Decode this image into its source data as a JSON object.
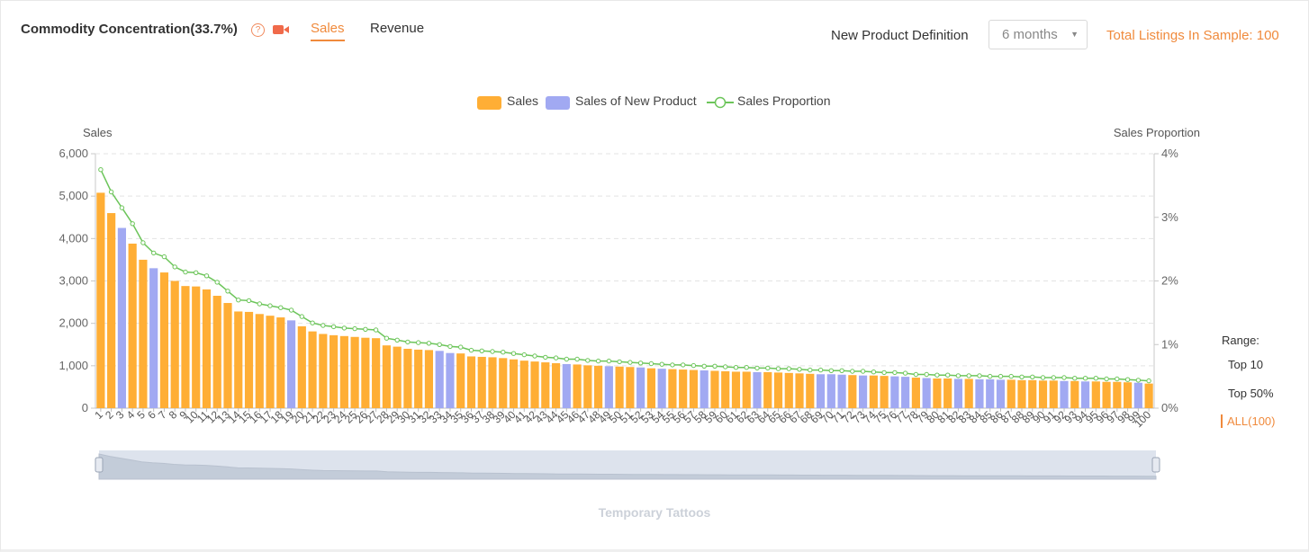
{
  "header": {
    "title": "Commodity Concentration(33.7%)",
    "help_icon": "question-circle-icon",
    "video_icon": "video-camera-icon",
    "tabs": [
      {
        "label": "Sales",
        "active": true
      },
      {
        "label": "Revenue",
        "active": false
      }
    ],
    "new_product_label": "New Product Definition",
    "period_select": {
      "value": "6 months"
    },
    "total_listings": "Total Listings In Sample: 100",
    "accent_color": "#f08a3c"
  },
  "range": {
    "label": "Range:",
    "options": [
      {
        "label": "Top 10",
        "active": false
      },
      {
        "label": "Top 50%",
        "active": false
      },
      {
        "label": "ALL(100)",
        "active": true
      }
    ]
  },
  "chart_data": {
    "type": "bar",
    "left_axis_title": "Sales",
    "right_axis_title": "Sales Proportion",
    "left_ticks": [
      "0",
      "1,000",
      "2,000",
      "3,000",
      "4,000",
      "5,000",
      "6,000"
    ],
    "right_ticks": [
      "0%",
      "1%",
      "2%",
      "3%",
      "4%"
    ],
    "ylim": [
      0,
      6000
    ],
    "ylim_right": [
      0,
      4
    ],
    "grid": true,
    "legend_position": "top-center",
    "legend": [
      {
        "name": "Sales",
        "color": "#ffae35"
      },
      {
        "name": "Sales of New Product",
        "color": "#a1a9f2"
      },
      {
        "name": "Sales Proportion",
        "color": "#6cc55a"
      }
    ],
    "colors": {
      "sales": "#ffae35",
      "new_product": "#a1a9f2",
      "proportion": "#6cc55a"
    },
    "categories": [
      "1",
      "2",
      "3",
      "4",
      "5",
      "6",
      "7",
      "8",
      "9",
      "10",
      "11",
      "12",
      "13",
      "14",
      "15",
      "16",
      "17",
      "18",
      "19",
      "20",
      "21",
      "22",
      "23",
      "24",
      "25",
      "26",
      "27",
      "28",
      "29",
      "30",
      "31",
      "32",
      "33",
      "34",
      "35",
      "36",
      "37",
      "38",
      "39",
      "40",
      "41",
      "42",
      "43",
      "44",
      "45",
      "46",
      "47",
      "48",
      "49",
      "50",
      "51",
      "52",
      "53",
      "54",
      "55",
      "56",
      "57",
      "58",
      "59",
      "60",
      "61",
      "62",
      "63",
      "64",
      "65",
      "66",
      "67",
      "68",
      "69",
      "70",
      "71",
      "72",
      "73",
      "74",
      "75",
      "76",
      "77",
      "78",
      "79",
      "80",
      "81",
      "82",
      "83",
      "84",
      "85",
      "86",
      "87",
      "88",
      "89",
      "90",
      "91",
      "92",
      "93",
      "94",
      "95",
      "96",
      "97",
      "98",
      "99",
      "100"
    ],
    "values": [
      5080,
      4600,
      4250,
      3880,
      3500,
      3300,
      3200,
      3000,
      2880,
      2870,
      2800,
      2650,
      2480,
      2280,
      2270,
      2220,
      2180,
      2140,
      2070,
      1930,
      1810,
      1750,
      1720,
      1700,
      1680,
      1660,
      1650,
      1480,
      1450,
      1400,
      1380,
      1370,
      1350,
      1300,
      1290,
      1220,
      1210,
      1200,
      1180,
      1150,
      1120,
      1100,
      1080,
      1060,
      1040,
      1030,
      1010,
      1000,
      990,
      980,
      970,
      960,
      940,
      930,
      920,
      910,
      900,
      890,
      880,
      870,
      860,
      860,
      850,
      850,
      840,
      830,
      820,
      810,
      800,
      800,
      790,
      780,
      770,
      770,
      760,
      750,
      740,
      720,
      710,
      700,
      700,
      690,
      690,
      680,
      680,
      670,
      670,
      660,
      660,
      650,
      650,
      640,
      640,
      630,
      630,
      620,
      620,
      610,
      600,
      580
    ],
    "new_product_indices": [
      3,
      6,
      19,
      33,
      34,
      45,
      49,
      52,
      54,
      58,
      63,
      69,
      70,
      71,
      73,
      76,
      77,
      79,
      82,
      84,
      85,
      86,
      92,
      94,
      99
    ],
    "proportion": [
      3.75,
      3.4,
      3.15,
      2.9,
      2.6,
      2.44,
      2.38,
      2.22,
      2.14,
      2.13,
      2.08,
      1.98,
      1.84,
      1.7,
      1.69,
      1.64,
      1.61,
      1.58,
      1.54,
      1.44,
      1.34,
      1.3,
      1.28,
      1.26,
      1.25,
      1.24,
      1.23,
      1.1,
      1.07,
      1.04,
      1.03,
      1.02,
      1,
      0.97,
      0.96,
      0.91,
      0.9,
      0.89,
      0.88,
      0.86,
      0.84,
      0.82,
      0.8,
      0.79,
      0.77,
      0.77,
      0.75,
      0.74,
      0.74,
      0.73,
      0.72,
      0.71,
      0.7,
      0.69,
      0.68,
      0.68,
      0.67,
      0.66,
      0.66,
      0.65,
      0.64,
      0.64,
      0.63,
      0.63,
      0.62,
      0.62,
      0.61,
      0.6,
      0.6,
      0.59,
      0.59,
      0.58,
      0.58,
      0.57,
      0.56,
      0.56,
      0.55,
      0.53,
      0.53,
      0.52,
      0.52,
      0.51,
      0.51,
      0.51,
      0.5,
      0.5,
      0.5,
      0.49,
      0.49,
      0.48,
      0.48,
      0.48,
      0.47,
      0.47,
      0.47,
      0.46,
      0.46,
      0.45,
      0.44,
      0.43
    ],
    "x_label": "Temporary Tattoos"
  }
}
